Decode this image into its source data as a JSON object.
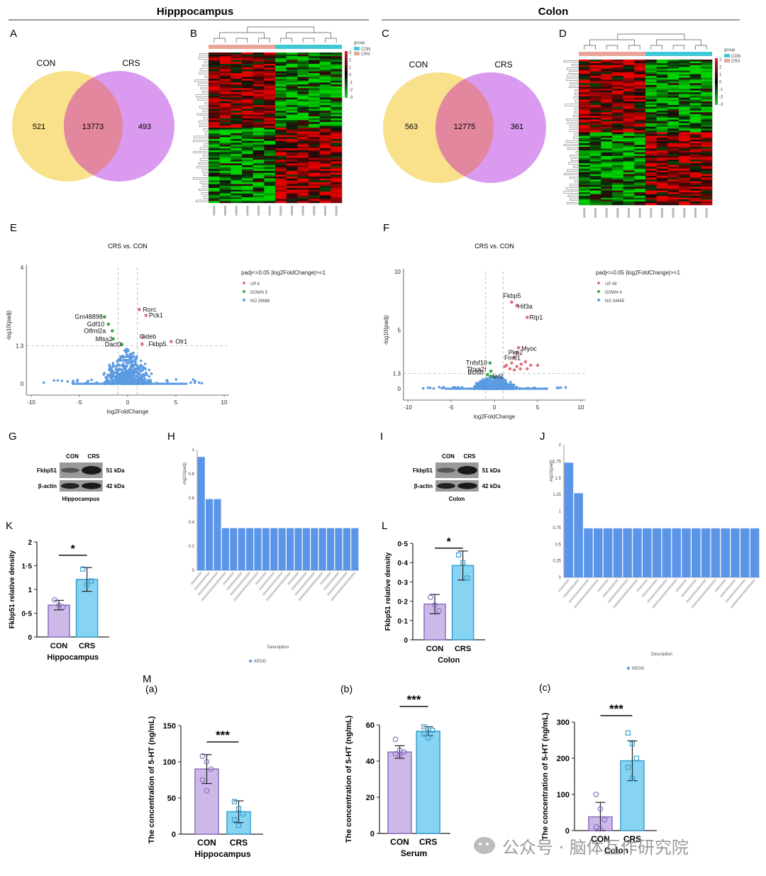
{
  "sections": {
    "hippocampus": "Hipppocampus",
    "colon": "Colon"
  },
  "panel_letters": {
    "A": "A",
    "B": "B",
    "C": "C",
    "D": "D",
    "E": "E",
    "F": "F",
    "G": "G",
    "H": "H",
    "I": "I",
    "J": "J",
    "K": "K",
    "L": "L",
    "M": "M"
  },
  "venn": {
    "A": {
      "left_label": "CON",
      "right_label": "CRS",
      "left_only": "521",
      "overlap": "13773",
      "right_only": "493"
    },
    "C": {
      "left_label": "CON",
      "right_label": "CRS",
      "left_only": "563",
      "overlap": "12775",
      "right_only": "361"
    },
    "colors": {
      "left": "#f9e08a",
      "right": "#d99af0",
      "overlap": "#e2879e"
    }
  },
  "heatmap": {
    "legend_title": "group",
    "legend_items": [
      "CON",
      "CRS"
    ],
    "scale_ticks_B": [
      "3",
      "2",
      "1",
      "0",
      "-1",
      "-2",
      "-3"
    ],
    "scale_ticks_D": [
      "3",
      "2",
      "1",
      "0",
      "-1",
      "-2",
      "-3"
    ],
    "group_colors": {
      "CON": "#3ec7d4",
      "CRS": "#e9a597"
    }
  },
  "volcano": {
    "E": {
      "title": "CRS vs. CON",
      "xlabel": "log2FoldChange",
      "ylabel": "-log10(padj)",
      "legend_title": "padj<=0.05 |log2FoldChange|>=1",
      "legend": [
        {
          "label": "UP 6",
          "color": "#e0707a"
        },
        {
          "label": "DOWN 5",
          "color": "#3aa84a"
        },
        {
          "label": "NO 29688",
          "color": "#5b9ae0"
        }
      ],
      "xticks": [
        "-10",
        "-5",
        "0",
        "5",
        "10"
      ],
      "yticks": [
        "4",
        "1.3",
        "0"
      ],
      "genes": [
        {
          "name": "Rorc",
          "red": false
        },
        {
          "name": "Pck1",
          "red": false
        },
        {
          "name": "Gm48898",
          "red": false
        },
        {
          "name": "Gdf10",
          "red": false
        },
        {
          "name": "Olfml2a",
          "red": false
        },
        {
          "name": "Cideb",
          "red": false
        },
        {
          "name": "Mtss2",
          "red": false
        },
        {
          "name": "Dact3",
          "red": false
        },
        {
          "name": "Fkbp5",
          "red": true
        },
        {
          "name": "Olr1",
          "red": false
        }
      ]
    },
    "F": {
      "title": "CRS vs. CON",
      "xlabel": "log2FoldChange",
      "ylabel": "-log10(padj)",
      "legend_title": "padj<=0.05 |log2FoldChange|>=1",
      "legend": [
        {
          "label": "UP 49",
          "color": "#e0707a"
        },
        {
          "label": "DOWN 4",
          "color": "#3aa84a"
        },
        {
          "label": "NO 34455",
          "color": "#5b9ae0"
        }
      ],
      "xticks": [
        "-10",
        "-5",
        "0",
        "5",
        "10"
      ],
      "yticks": [
        "10",
        "5",
        "1.3",
        "0"
      ],
      "genes": [
        {
          "name": "Fkbp5",
          "red": true
        },
        {
          "name": "Hif3a",
          "red": false
        },
        {
          "name": "Rtp1",
          "red": false
        },
        {
          "name": "Myoc",
          "red": false
        },
        {
          "name": "Pkp2",
          "red": false
        },
        {
          "name": "Fmo1",
          "red": false
        },
        {
          "name": "Tnfsf10",
          "red": false
        },
        {
          "name": "Tbxa2r",
          "red": false
        },
        {
          "name": "Bcl6b",
          "red": false
        },
        {
          "name": "Ier2",
          "red": false
        }
      ]
    }
  },
  "western": {
    "G": {
      "cols": [
        "CON",
        "CRS"
      ],
      "rows": [
        {
          "name": "Fkbp51",
          "kda": "51 kDa"
        },
        {
          "name": "β-actin",
          "kda": "42 kDa"
        }
      ],
      "tissue": "Hippocampus"
    },
    "I": {
      "cols": [
        "CON",
        "CRS"
      ],
      "rows": [
        {
          "name": "Fkbp51",
          "kda": "51 kDa"
        },
        {
          "name": "β-actin",
          "kda": "42 kDa"
        }
      ],
      "tissue": "Colon"
    }
  },
  "kegg": {
    "H": {
      "ylabel": "-log10(padj)",
      "xlabel": "Description",
      "legend": "KEGG",
      "yticks": [
        "1",
        "0.8",
        "0.6",
        "0.4",
        "0.2",
        "0"
      ],
      "ylim": [
        0,
        1
      ],
      "values": [
        0.94,
        0.59,
        0.59,
        0.35,
        0.35,
        0.35,
        0.35,
        0.35,
        0.35,
        0.35,
        0.35,
        0.35,
        0.35,
        0.35,
        0.35,
        0.35,
        0.35,
        0.35,
        0.35,
        0.35
      ]
    },
    "J": {
      "ylabel": "-log10(padj)",
      "xlabel": "Description",
      "legend": "KEGG",
      "yticks": [
        "2",
        "1.75",
        "1.5",
        "1.25",
        "1",
        "0.75",
        "0.5",
        "0.25",
        "0"
      ],
      "ylim": [
        0,
        2
      ],
      "values": [
        1.73,
        1.27,
        0.74,
        0.74,
        0.74,
        0.74,
        0.74,
        0.74,
        0.74,
        0.74,
        0.74,
        0.74,
        0.74,
        0.74,
        0.74,
        0.74,
        0.74,
        0.74,
        0.74,
        0.74
      ]
    }
  },
  "chart_data": [
    {
      "id": "K",
      "type": "bar",
      "categories": [
        "CON",
        "CRS"
      ],
      "values": [
        0.67,
        1.21
      ],
      "errors": [
        0.1,
        0.25
      ],
      "points": [
        [
          0.78,
          0.67,
          0.63
        ],
        [
          1.43,
          1.1,
          1.18
        ]
      ],
      "ylabel": "Fkbp51 relative density",
      "xlabel": "Hippocampus",
      "ylim": [
        0,
        2
      ],
      "yticks": [
        "0",
        "0·5",
        "1",
        "1·5",
        "2"
      ],
      "significance": "*"
    },
    {
      "id": "L",
      "type": "bar",
      "categories": [
        "CON",
        "CRS"
      ],
      "values": [
        0.185,
        0.385
      ],
      "errors": [
        0.05,
        0.075
      ],
      "points": [
        [
          0.22,
          0.18,
          0.15
        ],
        [
          0.44,
          0.4,
          0.32
        ]
      ],
      "ylabel": "Fkbp51 relative density",
      "xlabel": "Colon",
      "ylim": [
        0,
        0.5
      ],
      "yticks": [
        "0",
        "0·1",
        "0·2",
        "0·3",
        "0·4",
        "0·5"
      ],
      "significance": "*"
    },
    {
      "id": "M-a",
      "type": "bar",
      "sub": "(a)",
      "categories": [
        "CON",
        "CRS"
      ],
      "values": [
        90,
        31
      ],
      "errors": [
        20,
        15
      ],
      "points": [
        [
          108,
          100,
          90,
          75,
          60
        ],
        [
          45,
          35,
          28,
          20,
          12
        ]
      ],
      "ylabel": "The concentration of 5-HT (ng/mL)",
      "xlabel": "Hippocampus",
      "ylim": [
        0,
        150
      ],
      "yticks": [
        "0",
        "50",
        "100",
        "150"
      ],
      "significance": "***"
    },
    {
      "id": "M-b",
      "type": "bar",
      "sub": "(b)",
      "categories": [
        "CON",
        "CRS"
      ],
      "values": [
        45,
        56.5
      ],
      "errors": [
        3.5,
        2.5
      ],
      "points": [
        [
          52,
          46,
          45,
          44,
          43
        ],
        [
          59,
          58,
          57,
          55,
          53
        ]
      ],
      "ylabel": "The concentration of 5-HT (ng/mL)",
      "xlabel": "Serum",
      "ylim": [
        0,
        60
      ],
      "yticks": [
        "0",
        "20",
        "40",
        "60"
      ],
      "significance": "***"
    },
    {
      "id": "M-c",
      "type": "bar",
      "sub": "(c)",
      "categories": [
        "CON",
        "CRS"
      ],
      "values": [
        38,
        193
      ],
      "errors": [
        40,
        55
      ],
      "points": [
        [
          100,
          60,
          30,
          10,
          5
        ],
        [
          270,
          240,
          200,
          175,
          145
        ]
      ],
      "ylabel": "The concentration of 5-HT (ng/mL)",
      "xlabel": "Colon",
      "ylim": [
        0,
        300
      ],
      "yticks": [
        "0",
        "100",
        "200",
        "300"
      ],
      "significance": "***"
    }
  ],
  "watermark": "公众号 · 脑体互作研究院",
  "colors": {
    "con_bar": "#cdb9e8",
    "crs_bar": "#86d4f2",
    "con_edge": "#8a6fbf",
    "crs_edge": "#3a9ed0",
    "kegg_bar": "#5b95e8"
  }
}
